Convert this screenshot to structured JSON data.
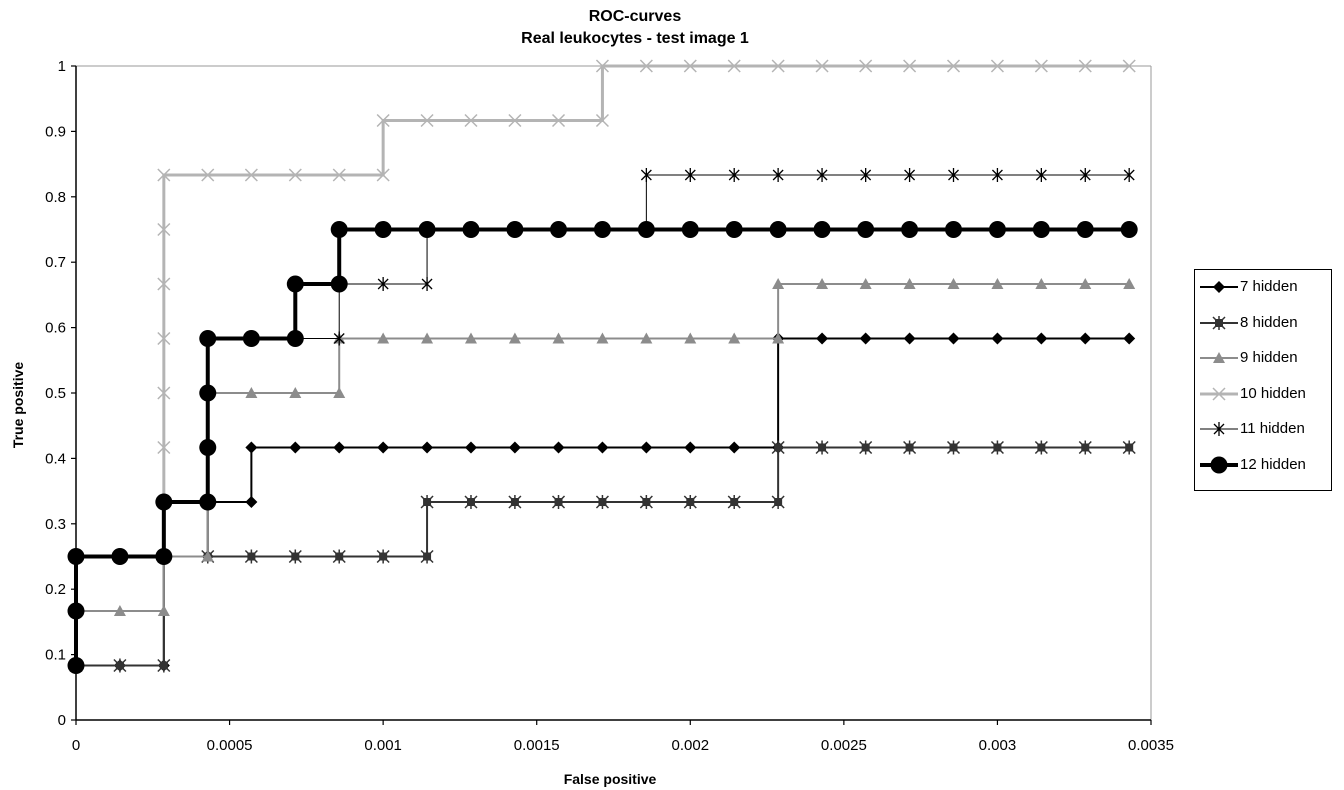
{
  "chart_data": {
    "type": "line",
    "title": "ROC-curves",
    "subtitle": "Real leukocytes - test image 1",
    "xlabel": "False positive",
    "ylabel": "True positive",
    "xlim": [
      0,
      0.0035
    ],
    "ylim": [
      0,
      1
    ],
    "xticks": [
      "0",
      "0.0005",
      "0.001",
      "0.0015",
      "0.002",
      "0.0025",
      "0.003",
      "0.0035"
    ],
    "yticks": [
      "0",
      "0.1",
      "0.2",
      "0.3",
      "0.4",
      "0.5",
      "0.6",
      "0.7",
      "0.8",
      "0.9",
      "1"
    ],
    "legend_position": "right",
    "grid": false,
    "series": [
      {
        "name": "7 hidden",
        "color": "#000000",
        "marker": "diamond",
        "line_width": 2,
        "points": [
          [
            0,
            0.0833
          ],
          [
            0.000143,
            0.0833
          ],
          [
            0.000286,
            0.0833
          ],
          [
            0.000286,
            0.25
          ],
          [
            0.000429,
            0.25
          ],
          [
            0.000429,
            0.3333
          ],
          [
            0.000571,
            0.3333
          ],
          [
            0.000571,
            0.4167
          ],
          [
            0.000714,
            0.4167
          ],
          [
            0.000857,
            0.4167
          ],
          [
            0.001,
            0.4167
          ],
          [
            0.001143,
            0.4167
          ],
          [
            0.001286,
            0.4167
          ],
          [
            0.001429,
            0.4167
          ],
          [
            0.001571,
            0.4167
          ],
          [
            0.001714,
            0.4167
          ],
          [
            0.001857,
            0.4167
          ],
          [
            0.002,
            0.4167
          ],
          [
            0.002143,
            0.4167
          ],
          [
            0.002286,
            0.4167
          ],
          [
            0.002286,
            0.5833
          ],
          [
            0.002429,
            0.5833
          ],
          [
            0.002571,
            0.5833
          ],
          [
            0.002714,
            0.5833
          ],
          [
            0.002857,
            0.5833
          ],
          [
            0.003,
            0.5833
          ],
          [
            0.003143,
            0.5833
          ],
          [
            0.003286,
            0.5833
          ],
          [
            0.003429,
            0.5833
          ]
        ]
      },
      {
        "name": "8 hidden",
        "color": "#333333",
        "marker": "asterisk-box",
        "line_width": 2,
        "points": [
          [
            0,
            0.0833
          ],
          [
            0.000143,
            0.0833
          ],
          [
            0.000286,
            0.0833
          ],
          [
            0.000286,
            0.25
          ],
          [
            0.000429,
            0.25
          ],
          [
            0.000571,
            0.25
          ],
          [
            0.000714,
            0.25
          ],
          [
            0.000857,
            0.25
          ],
          [
            0.001,
            0.25
          ],
          [
            0.001143,
            0.25
          ],
          [
            0.001143,
            0.3333
          ],
          [
            0.001286,
            0.3333
          ],
          [
            0.001429,
            0.3333
          ],
          [
            0.001571,
            0.3333
          ],
          [
            0.001714,
            0.3333
          ],
          [
            0.001857,
            0.3333
          ],
          [
            0.002,
            0.3333
          ],
          [
            0.002143,
            0.3333
          ],
          [
            0.002286,
            0.3333
          ],
          [
            0.002286,
            0.4167
          ],
          [
            0.002429,
            0.4167
          ],
          [
            0.002571,
            0.4167
          ],
          [
            0.002714,
            0.4167
          ],
          [
            0.002857,
            0.4167
          ],
          [
            0.003,
            0.4167
          ],
          [
            0.003143,
            0.4167
          ],
          [
            0.003286,
            0.4167
          ],
          [
            0.003429,
            0.4167
          ]
        ]
      },
      {
        "name": "9 hidden",
        "color": "#8c8c8c",
        "marker": "triangle",
        "line_width": 2,
        "points": [
          [
            0,
            0.1667
          ],
          [
            0.000143,
            0.1667
          ],
          [
            0.000286,
            0.1667
          ],
          [
            0.000286,
            0.25
          ],
          [
            0.000429,
            0.25
          ],
          [
            0.000429,
            0.5
          ],
          [
            0.000571,
            0.5
          ],
          [
            0.000714,
            0.5
          ],
          [
            0.000857,
            0.5
          ],
          [
            0.000857,
            0.5833
          ],
          [
            0.001,
            0.5833
          ],
          [
            0.001143,
            0.5833
          ],
          [
            0.001286,
            0.5833
          ],
          [
            0.001429,
            0.5833
          ],
          [
            0.001571,
            0.5833
          ],
          [
            0.001714,
            0.5833
          ],
          [
            0.001857,
            0.5833
          ],
          [
            0.002,
            0.5833
          ],
          [
            0.002143,
            0.5833
          ],
          [
            0.002286,
            0.5833
          ],
          [
            0.002286,
            0.6667
          ],
          [
            0.002429,
            0.6667
          ],
          [
            0.002571,
            0.6667
          ],
          [
            0.002714,
            0.6667
          ],
          [
            0.002857,
            0.6667
          ],
          [
            0.003,
            0.6667
          ],
          [
            0.003143,
            0.6667
          ],
          [
            0.003286,
            0.6667
          ],
          [
            0.003429,
            0.6667
          ]
        ]
      },
      {
        "name": "10 hidden",
        "color": "#b4b4b4",
        "marker": "x",
        "line_width": 3,
        "points": [
          [
            0,
            0.25
          ],
          [
            0.000143,
            0.25
          ],
          [
            0.000286,
            0.25
          ],
          [
            0.000286,
            0.4167
          ],
          [
            0.000286,
            0.5
          ],
          [
            0.000286,
            0.5833
          ],
          [
            0.000286,
            0.6667
          ],
          [
            0.000286,
            0.75
          ],
          [
            0.000286,
            0.8333
          ],
          [
            0.000429,
            0.8333
          ],
          [
            0.000571,
            0.8333
          ],
          [
            0.000714,
            0.8333
          ],
          [
            0.000857,
            0.8333
          ],
          [
            0.001,
            0.8333
          ],
          [
            0.001,
            0.9167
          ],
          [
            0.001143,
            0.9167
          ],
          [
            0.001286,
            0.9167
          ],
          [
            0.001429,
            0.9167
          ],
          [
            0.001571,
            0.9167
          ],
          [
            0.001714,
            0.9167
          ],
          [
            0.001714,
            1
          ],
          [
            0.001857,
            1
          ],
          [
            0.002,
            1
          ],
          [
            0.002143,
            1
          ],
          [
            0.002286,
            1
          ],
          [
            0.002429,
            1
          ],
          [
            0.002571,
            1
          ],
          [
            0.002714,
            1
          ],
          [
            0.002857,
            1
          ],
          [
            0.003,
            1
          ],
          [
            0.003143,
            1
          ],
          [
            0.003286,
            1
          ],
          [
            0.003429,
            1
          ]
        ]
      },
      {
        "name": "11 hidden",
        "color": "#000000",
        "marker": "star",
        "line_width": 1,
        "points": [
          [
            0,
            0.25
          ],
          [
            0.000143,
            0.25
          ],
          [
            0.000286,
            0.25
          ],
          [
            0.000286,
            0.3333
          ],
          [
            0.000429,
            0.3333
          ],
          [
            0.000429,
            0.5833
          ],
          [
            0.000571,
            0.5833
          ],
          [
            0.000714,
            0.5833
          ],
          [
            0.000857,
            0.5833
          ],
          [
            0.000857,
            0.6667
          ],
          [
            0.001,
            0.6667
          ],
          [
            0.001143,
            0.6667
          ],
          [
            0.001143,
            0.75
          ],
          [
            0.001286,
            0.75
          ],
          [
            0.001429,
            0.75
          ],
          [
            0.001571,
            0.75
          ],
          [
            0.001714,
            0.75
          ],
          [
            0.001857,
            0.75
          ],
          [
            0.001857,
            0.8333
          ],
          [
            0.002,
            0.8333
          ],
          [
            0.002143,
            0.8333
          ],
          [
            0.002286,
            0.8333
          ],
          [
            0.002429,
            0.8333
          ],
          [
            0.002571,
            0.8333
          ],
          [
            0.002714,
            0.8333
          ],
          [
            0.002857,
            0.8333
          ],
          [
            0.003,
            0.8333
          ],
          [
            0.003143,
            0.8333
          ],
          [
            0.003286,
            0.8333
          ],
          [
            0.003429,
            0.8333
          ]
        ]
      },
      {
        "name": "12 hidden",
        "color": "#000000",
        "marker": "circle",
        "line_width": 4,
        "points": [
          [
            0,
            0.0833
          ],
          [
            0,
            0.1667
          ],
          [
            0,
            0.25
          ],
          [
            0.000143,
            0.25
          ],
          [
            0.000286,
            0.25
          ],
          [
            0.000286,
            0.3333
          ],
          [
            0.000429,
            0.3333
          ],
          [
            0.000429,
            0.4167
          ],
          [
            0.000429,
            0.5
          ],
          [
            0.000429,
            0.5833
          ],
          [
            0.000571,
            0.5833
          ],
          [
            0.000714,
            0.5833
          ],
          [
            0.000714,
            0.6667
          ],
          [
            0.000857,
            0.6667
          ],
          [
            0.000857,
            0.75
          ],
          [
            0.001,
            0.75
          ],
          [
            0.001143,
            0.75
          ],
          [
            0.001286,
            0.75
          ],
          [
            0.001429,
            0.75
          ],
          [
            0.001571,
            0.75
          ],
          [
            0.001714,
            0.75
          ],
          [
            0.001857,
            0.75
          ],
          [
            0.002,
            0.75
          ],
          [
            0.002143,
            0.75
          ],
          [
            0.002286,
            0.75
          ],
          [
            0.002429,
            0.75
          ],
          [
            0.002571,
            0.75
          ],
          [
            0.002714,
            0.75
          ],
          [
            0.002857,
            0.75
          ],
          [
            0.003,
            0.75
          ],
          [
            0.003143,
            0.75
          ],
          [
            0.003286,
            0.75
          ],
          [
            0.003429,
            0.75
          ]
        ]
      }
    ]
  }
}
